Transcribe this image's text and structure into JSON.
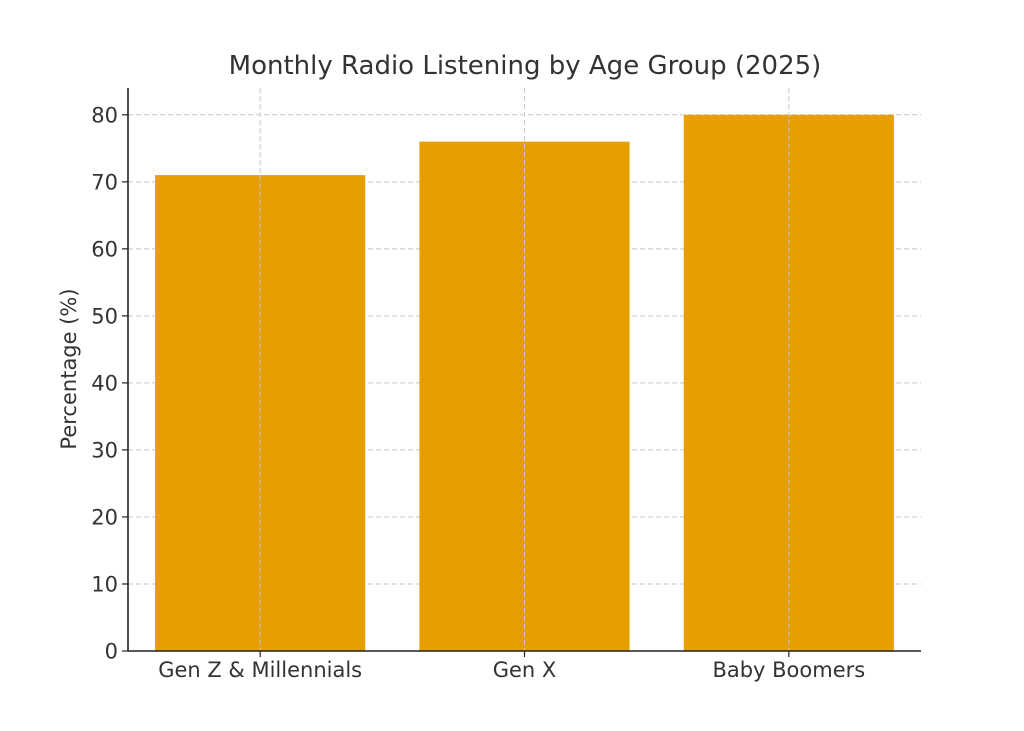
{
  "chart_data": {
    "type": "bar",
    "title": "Monthly Radio Listening by Age Group (2025)",
    "xlabel": "",
    "ylabel": "Percentage (%)",
    "categories": [
      "Gen Z & Millennials",
      "Gen X",
      "Baby Boomers"
    ],
    "values": [
      71,
      76,
      80
    ],
    "ylim": [
      0,
      84
    ],
    "yticks": [
      0,
      10,
      20,
      30,
      40,
      50,
      60,
      70,
      80
    ],
    "grid": true,
    "bar_color": "#E69F00"
  }
}
